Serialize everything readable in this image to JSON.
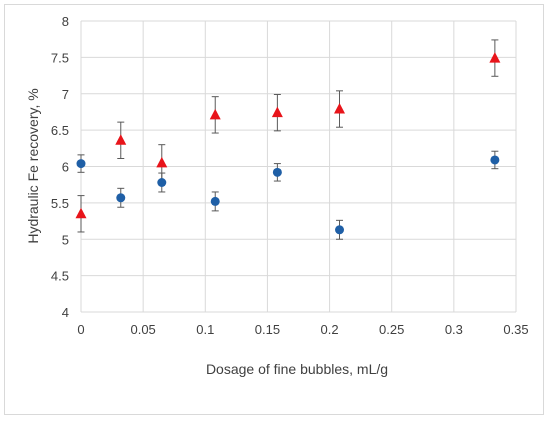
{
  "chart_data": {
    "type": "scatter",
    "title": "",
    "xlabel": "Dosage of fine bubbles, mL/g",
    "ylabel": "Hydraulic Fe recovery, %",
    "xlim": [
      0,
      0.35
    ],
    "ylim": [
      4,
      8
    ],
    "x_ticks": [
      "0",
      "0.05",
      "0.1",
      "0.15",
      "0.2",
      "0.25",
      "0.3",
      "0.35"
    ],
    "y_ticks": [
      "4",
      "4.5",
      "5",
      "5.5",
      "6",
      "6.5",
      "7",
      "7.5",
      "8"
    ],
    "grid": true,
    "legend": "none",
    "series": [
      {
        "marker": "circle",
        "color": "#1f5fa6",
        "points": [
          {
            "x": 0.0,
            "y": 6.04,
            "err": 0.12
          },
          {
            "x": 0.032,
            "y": 5.57,
            "err": 0.13
          },
          {
            "x": 0.065,
            "y": 5.78,
            "err": 0.13
          },
          {
            "x": 0.108,
            "y": 5.52,
            "err": 0.13
          },
          {
            "x": 0.158,
            "y": 5.92,
            "err": 0.12
          },
          {
            "x": 0.208,
            "y": 5.13,
            "err": 0.13
          },
          {
            "x": 0.333,
            "y": 6.09,
            "err": 0.12
          }
        ]
      },
      {
        "marker": "triangle",
        "color": "#e8141a",
        "points": [
          {
            "x": 0.0,
            "y": 5.35,
            "err": 0.25
          },
          {
            "x": 0.032,
            "y": 6.36,
            "err": 0.25
          },
          {
            "x": 0.065,
            "y": 6.05,
            "err": 0.25
          },
          {
            "x": 0.108,
            "y": 6.71,
            "err": 0.25
          },
          {
            "x": 0.158,
            "y": 6.74,
            "err": 0.25
          },
          {
            "x": 0.208,
            "y": 6.79,
            "err": 0.25
          },
          {
            "x": 0.333,
            "y": 7.49,
            "err": 0.25
          }
        ]
      }
    ]
  }
}
